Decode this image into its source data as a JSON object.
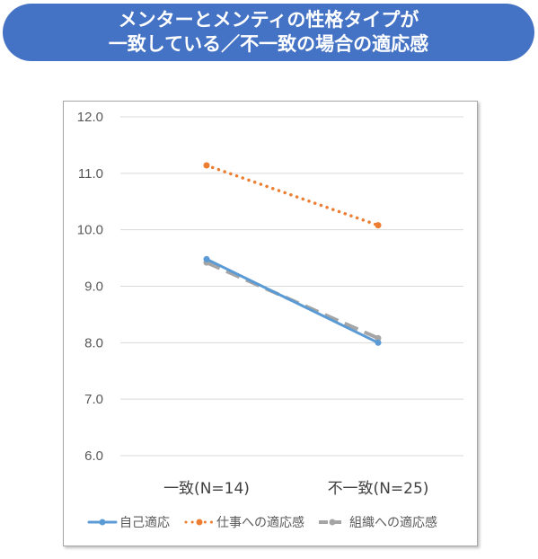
{
  "header": {
    "title_line1": "メンターとメンティの性格タイプが",
    "title_line2": "一致している／不一致の場合の適応感"
  },
  "chart_data": {
    "type": "line",
    "categories": [
      "一致(N=14)",
      "不一致(N=25)"
    ],
    "ylim": [
      6.0,
      12.0
    ],
    "yticks": [
      "12.0",
      "11.0",
      "10.0",
      "9.0",
      "8.0",
      "7.0",
      "6.0"
    ],
    "grid": true,
    "legend_position": "bottom",
    "series": [
      {
        "name": "自己適応",
        "values": [
          9.48,
          8.0
        ],
        "color": "#5b9bd5",
        "style": "solid"
      },
      {
        "name": "仕事への適応感",
        "values": [
          11.14,
          10.08
        ],
        "color": "#ed7d31",
        "style": "dotted"
      },
      {
        "name": "組織への適応感",
        "values": [
          9.42,
          8.08
        ],
        "color": "#a5a5a5",
        "style": "dashed"
      }
    ]
  }
}
